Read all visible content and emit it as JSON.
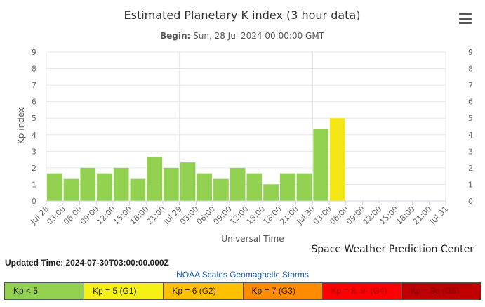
{
  "chart_data": {
    "type": "bar",
    "title": "Estimated Planetary K index (3 hour data)",
    "subtitle_label": "Begin:",
    "subtitle_value": "Sun, 28 Jul 2024 00:00:00 GMT",
    "xlabel": "Universal Time",
    "ylabel": "Kp index",
    "ylim": [
      0,
      9
    ],
    "yticks": [
      0,
      1,
      2,
      3,
      4,
      5,
      6,
      7,
      8,
      9
    ],
    "xticks": [
      "Jul 28",
      "03:00",
      "06:00",
      "09:00",
      "12:00",
      "15:00",
      "18:00",
      "21:00",
      "Jul 29",
      "03:00",
      "06:00",
      "09:00",
      "12:00",
      "15:00",
      "18:00",
      "21:00",
      "Jul 30",
      "03:00",
      "06:00",
      "09:00",
      "12:00",
      "15:00",
      "18:00",
      "21:00",
      "Jul 31"
    ],
    "values": [
      1.67,
      1.33,
      2.0,
      1.67,
      2.0,
      1.33,
      2.67,
      2.0,
      2.33,
      1.67,
      1.33,
      2.0,
      1.67,
      1.0,
      1.67,
      1.67,
      4.33,
      5.0
    ],
    "bar_colors": [
      "#92d050",
      "#92d050",
      "#92d050",
      "#92d050",
      "#92d050",
      "#92d050",
      "#92d050",
      "#92d050",
      "#92d050",
      "#92d050",
      "#92d050",
      "#92d050",
      "#92d050",
      "#92d050",
      "#92d050",
      "#92d050",
      "#92d050",
      "#f5e616"
    ],
    "grid": true,
    "credit": "Space Weather Prediction Center"
  },
  "updated_time": "Updated Time: 2024-07-30T03:00:00.000Z",
  "scales_link": "NOAA Scales Geomagnetic Storms",
  "legend": [
    {
      "label": "Kp < 5",
      "color": "#92d050",
      "text_color": "#222222"
    },
    {
      "label": "Kp = 5 (G1)",
      "color": "#f5f015",
      "text_color": "#222222"
    },
    {
      "label": "Kp = 6 (G2)",
      "color": "#ffc000",
      "text_color": "#222222"
    },
    {
      "label": "Kp = 7 (G3)",
      "color": "#ff8c00",
      "text_color": "#222222"
    },
    {
      "label": "Kp = 8, 9- (G4)",
      "color": "#ff0000",
      "text_color": "#a00000"
    },
    {
      "label": "Kp = 9o (G5)",
      "color": "#c00000",
      "text_color": "#7a0000"
    }
  ],
  "menu_icon": "hamburger-menu-icon"
}
